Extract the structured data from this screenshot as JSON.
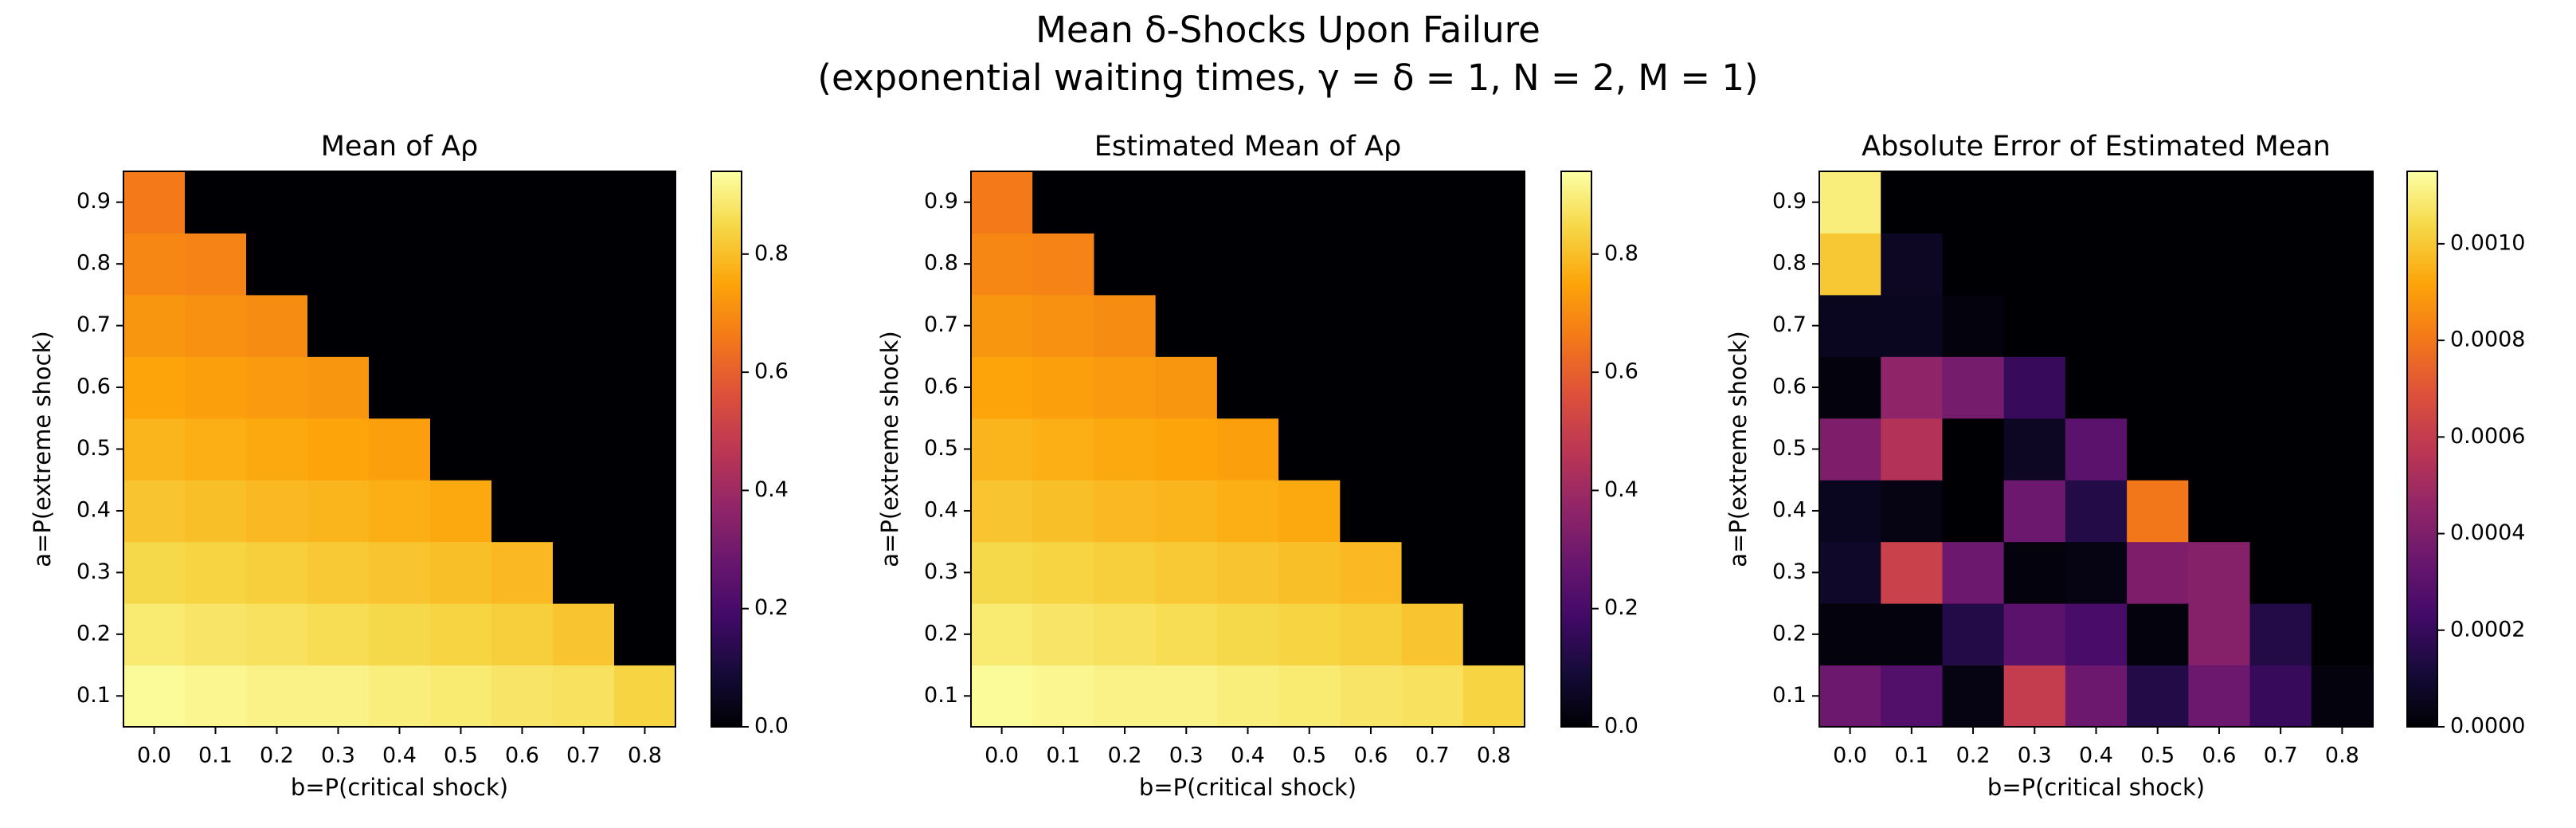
{
  "title": "Mean δ-Shocks Upon Failure",
  "subtitle": "(exponential waiting times, γ = δ = 1, N = 2, M = 1)",
  "chart_data": [
    {
      "type": "heatmap",
      "title": "Mean of Aρ",
      "xlabel": "b=P(critical shock)",
      "ylabel": "a=P(extreme shock)",
      "x": [
        "0.0",
        "0.1",
        "0.2",
        "0.3",
        "0.4",
        "0.5",
        "0.6",
        "0.7",
        "0.8"
      ],
      "y": [
        "0.1",
        "0.2",
        "0.3",
        "0.4",
        "0.5",
        "0.6",
        "0.7",
        "0.8",
        "0.9"
      ],
      "values": [
        [
          0.93,
          0.92,
          0.91,
          0.91,
          0.9,
          0.89,
          0.88,
          0.87,
          0.84
        ],
        [
          0.89,
          0.88,
          0.87,
          0.86,
          0.85,
          0.84,
          0.83,
          0.81,
          0
        ],
        [
          0.85,
          0.84,
          0.83,
          0.82,
          0.81,
          0.8,
          0.79,
          0,
          0
        ],
        [
          0.81,
          0.8,
          0.79,
          0.78,
          0.77,
          0.76,
          0,
          0,
          0
        ],
        [
          0.78,
          0.77,
          0.76,
          0.75,
          0.74,
          0,
          0,
          0,
          0
        ],
        [
          0.75,
          0.74,
          0.73,
          0.72,
          0,
          0,
          0,
          0,
          0
        ],
        [
          0.72,
          0.71,
          0.7,
          0,
          0,
          0,
          0,
          0,
          0
        ],
        [
          0.69,
          0.68,
          0,
          0,
          0,
          0,
          0,
          0,
          0
        ],
        [
          0.66,
          0,
          0,
          0,
          0,
          0,
          0,
          0,
          0
        ]
      ],
      "colormap": "inferno",
      "clim": [
        0,
        0.94
      ],
      "cticks": [
        {
          "value": 0,
          "label": "0.0"
        },
        0.2,
        0.4,
        0.6,
        0.8
      ]
    },
    {
      "type": "heatmap",
      "title": "Estimated Mean of Aρ",
      "xlabel": "b=P(critical shock)",
      "ylabel": "a=P(extreme shock)",
      "x": [
        "0.0",
        "0.1",
        "0.2",
        "0.3",
        "0.4",
        "0.5",
        "0.6",
        "0.7",
        "0.8"
      ],
      "y": [
        "0.1",
        "0.2",
        "0.3",
        "0.4",
        "0.5",
        "0.6",
        "0.7",
        "0.8",
        "0.9"
      ],
      "values": [
        [
          0.93,
          0.92,
          0.91,
          0.91,
          0.9,
          0.89,
          0.88,
          0.87,
          0.84
        ],
        [
          0.89,
          0.88,
          0.87,
          0.86,
          0.85,
          0.84,
          0.83,
          0.81,
          0
        ],
        [
          0.85,
          0.84,
          0.83,
          0.82,
          0.81,
          0.8,
          0.79,
          0,
          0
        ],
        [
          0.81,
          0.8,
          0.79,
          0.78,
          0.77,
          0.76,
          0,
          0,
          0
        ],
        [
          0.78,
          0.77,
          0.76,
          0.75,
          0.74,
          0,
          0,
          0,
          0
        ],
        [
          0.75,
          0.74,
          0.73,
          0.72,
          0,
          0,
          0,
          0,
          0
        ],
        [
          0.72,
          0.71,
          0.7,
          0,
          0,
          0,
          0,
          0,
          0
        ],
        [
          0.69,
          0.68,
          0,
          0,
          0,
          0,
          0,
          0,
          0
        ],
        [
          0.66,
          0,
          0,
          0,
          0,
          0,
          0,
          0,
          0
        ]
      ],
      "colormap": "inferno",
      "clim": [
        0,
        0.94
      ],
      "cticks": [
        {
          "value": 0,
          "label": "0.0"
        },
        0.2,
        0.4,
        0.6,
        0.8
      ]
    },
    {
      "type": "heatmap",
      "title": "Absolute Error of Estimated Mean",
      "xlabel": "b=P(critical shock)",
      "ylabel": "a=P(extreme shock)",
      "x": [
        "0.0",
        "0.1",
        "0.2",
        "0.3",
        "0.4",
        "0.5",
        "0.6",
        "0.7",
        "0.8"
      ],
      "y": [
        "0.1",
        "0.2",
        "0.3",
        "0.4",
        "0.5",
        "0.6",
        "0.7",
        "0.8",
        "0.9"
      ],
      "values": [
        [
          0.00035,
          0.00028,
          3e-05,
          0.0006,
          0.00035,
          0.00015,
          0.00035,
          0.0002,
          2e-05
        ],
        [
          2e-05,
          2e-05,
          0.00015,
          0.0003,
          0.00025,
          2e-05,
          0.00042,
          0.00015,
          0
        ],
        [
          8e-05,
          0.00062,
          0.00035,
          2e-05,
          3e-05,
          0.0004,
          0.00042,
          0,
          0
        ],
        [
          6e-05,
          3e-05,
          0,
          0.00035,
          0.00015,
          0.0008,
          0,
          0,
          0
        ],
        [
          0.0004,
          0.00055,
          0,
          7e-05,
          0.0003,
          0,
          0,
          0,
          0
        ],
        [
          2e-05,
          0.00045,
          0.00038,
          0.0002,
          0,
          0,
          0,
          0,
          0
        ],
        [
          6e-05,
          6e-05,
          2e-05,
          0,
          0,
          0,
          0,
          0,
          0
        ],
        [
          0.001,
          7e-05,
          0,
          0,
          0,
          0,
          0,
          0,
          0
        ],
        [
          0.0011,
          0,
          0,
          0,
          0,
          0,
          0,
          0,
          0
        ]
      ],
      "colormap": "inferno",
      "clim": [
        0,
        0.00115
      ],
      "cticks": [
        {
          "value": 0,
          "label": "0.0000"
        },
        {
          "value": 0.0002,
          "label": "0.0002"
        },
        {
          "value": 0.0004,
          "label": "0.0004"
        },
        {
          "value": 0.0006,
          "label": "0.0006"
        },
        {
          "value": 0.0008,
          "label": "0.0008"
        },
        {
          "value": 0.001,
          "label": "0.0010"
        }
      ]
    }
  ]
}
